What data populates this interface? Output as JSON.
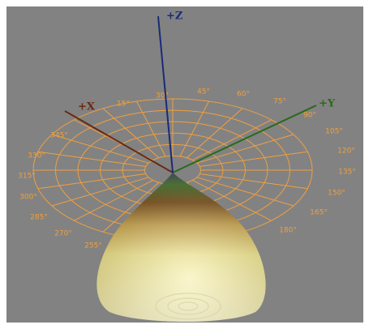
{
  "axes": {
    "z": "+Z",
    "x": "+X",
    "y": "+Y"
  },
  "angle_labels": [
    "15°",
    "30°",
    "45°",
    "60°",
    "75°",
    "90°",
    "105°",
    "120°",
    "135°",
    "150°",
    "165°",
    "180°",
    "255°",
    "270°",
    "285°",
    "300°",
    "315°",
    "330°",
    "345°"
  ]
}
